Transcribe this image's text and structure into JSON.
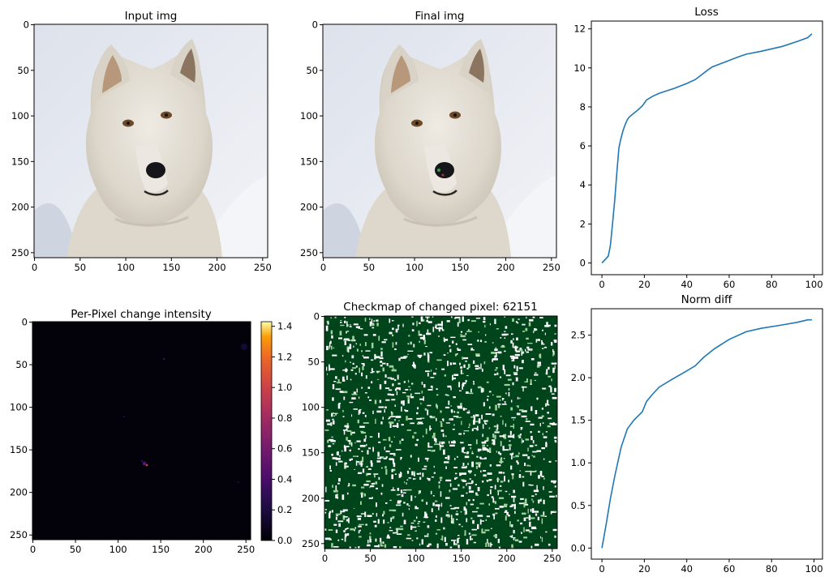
{
  "figure": {
    "panels": {
      "input_img": {
        "title": "Input img",
        "x_ticks": [
          "0",
          "50",
          "100",
          "150",
          "200",
          "250"
        ],
        "y_ticks": [
          "0",
          "50",
          "100",
          "150",
          "200",
          "250"
        ]
      },
      "final_img": {
        "title": "Final img",
        "x_ticks": [
          "0",
          "50",
          "100",
          "150",
          "200",
          "250"
        ],
        "y_ticks": [
          "0",
          "50",
          "100",
          "150",
          "200",
          "250"
        ]
      },
      "change_intensity": {
        "title": "Per-Pixel change intensity",
        "x_ticks": [
          "0",
          "50",
          "100",
          "150",
          "200",
          "250"
        ],
        "y_ticks": [
          "0",
          "50",
          "100",
          "150",
          "200",
          "250"
        ],
        "colorbar_ticks": [
          "0.0",
          "0.2",
          "0.4",
          "0.6",
          "0.8",
          "1.0",
          "1.2",
          "1.4"
        ],
        "colormap": "inferno",
        "colorbar_range": [
          0,
          1.43
        ]
      },
      "checkmap": {
        "title": "Checkmap of changed pixel: 62151",
        "x_ticks": [
          "0",
          "50",
          "100",
          "150",
          "200",
          "250"
        ],
        "y_ticks": [
          "0",
          "50",
          "100",
          "150",
          "200",
          "250"
        ],
        "background_color": "#00441b",
        "changed_color": "#ffffff"
      }
    }
  },
  "chart_data": [
    {
      "type": "line",
      "title": "Loss",
      "xlabel": "",
      "ylabel": "",
      "xlim": [
        -5,
        104
      ],
      "ylim": [
        -0.6,
        12.4
      ],
      "x_ticks": [
        "0",
        "20",
        "40",
        "60",
        "80",
        "100"
      ],
      "y_ticks": [
        "0",
        "2",
        "4",
        "6",
        "8",
        "10",
        "12"
      ],
      "color": "#1f77b4",
      "x": [
        0,
        3,
        4,
        5,
        6,
        7,
        8,
        9,
        10,
        11,
        12,
        13,
        17,
        19,
        20,
        21,
        24,
        27,
        34,
        40,
        44,
        47,
        50,
        52,
        58,
        64,
        68,
        75,
        85,
        92,
        97,
        99
      ],
      "y": [
        0,
        0.35,
        0.9,
        2.0,
        3.2,
        4.6,
        5.9,
        6.4,
        6.8,
        7.1,
        7.35,
        7.5,
        7.85,
        8.05,
        8.2,
        8.35,
        8.55,
        8.7,
        8.95,
        9.2,
        9.4,
        9.65,
        9.9,
        10.05,
        10.3,
        10.55,
        10.7,
        10.85,
        11.1,
        11.35,
        11.55,
        11.75
      ]
    },
    {
      "type": "line",
      "title": "Norm diff",
      "xlabel": "",
      "ylabel": "",
      "xlim": [
        -5,
        104
      ],
      "ylim": [
        -0.13,
        2.81
      ],
      "x_ticks": [
        "0",
        "20",
        "40",
        "60",
        "80",
        "100"
      ],
      "y_ticks": [
        "0.0",
        "0.5",
        "1.0",
        "1.5",
        "2.0",
        "2.5"
      ],
      "color": "#1f77b4",
      "x": [
        0,
        2,
        4,
        6,
        9,
        12,
        15,
        19,
        21,
        24,
        27,
        33,
        40,
        44,
        48,
        53,
        60,
        68,
        75,
        85,
        92,
        97,
        99
      ],
      "y": [
        0,
        0.28,
        0.58,
        0.84,
        1.18,
        1.4,
        1.5,
        1.6,
        1.72,
        1.81,
        1.89,
        1.98,
        2.08,
        2.14,
        2.24,
        2.34,
        2.45,
        2.54,
        2.58,
        2.62,
        2.65,
        2.68,
        2.68
      ]
    }
  ]
}
